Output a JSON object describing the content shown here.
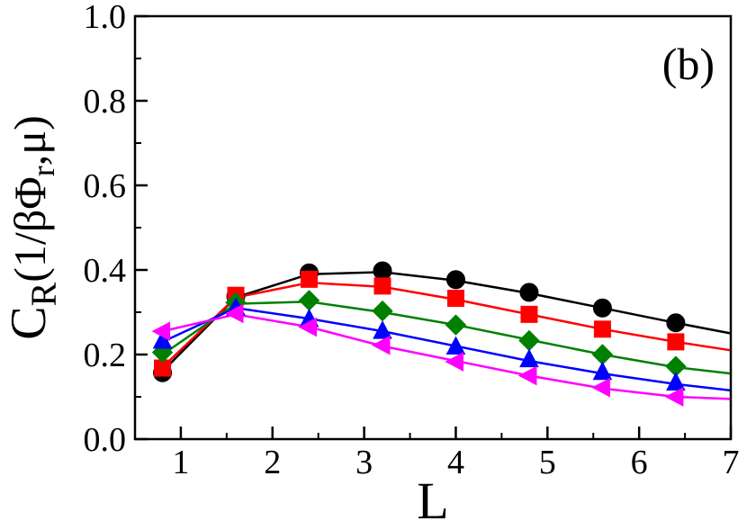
{
  "chart_data": {
    "type": "line",
    "panel_label": "(b)",
    "xlabel": "L",
    "ylabel": {
      "main": "C",
      "main_sub": "R",
      "arg_open": "(1/βΦ",
      "arg_sub": "r",
      "arg_close": ",μ)"
    },
    "xlim": [
      0.5,
      7
    ],
    "ylim": [
      0.0,
      1.0
    ],
    "xticks": [
      1,
      2,
      3,
      4,
      5,
      6,
      7
    ],
    "yticks": [
      0.0,
      0.2,
      0.4,
      0.6,
      0.8,
      1.0
    ],
    "xtick_labels": [
      "1",
      "2",
      "3",
      "4",
      "5",
      "6",
      "7"
    ],
    "ytick_labels": [
      "0.0",
      "0.2",
      "0.4",
      "0.6",
      "0.8",
      "1.0"
    ],
    "grid": false,
    "series": [
      {
        "color": "#000000",
        "marker": "circle",
        "line_x": [
          0.8,
          1.6,
          2.4,
          3.2,
          4.0,
          4.8,
          5.6,
          6.4,
          7.0
        ],
        "line_y": [
          0.16,
          0.335,
          0.39,
          0.395,
          0.375,
          0.345,
          0.31,
          0.275,
          0.25
        ],
        "marker_x": [
          0.8,
          1.6,
          2.4,
          3.2,
          4.0,
          4.8,
          5.6,
          6.4
        ],
        "marker_y": [
          0.157,
          0.337,
          0.393,
          0.398,
          0.377,
          0.347,
          0.31,
          0.275
        ]
      },
      {
        "color": "#ff0000",
        "marker": "square",
        "line_x": [
          0.8,
          1.6,
          2.4,
          3.2,
          4.0,
          4.8,
          5.6,
          6.4,
          7.0
        ],
        "line_y": [
          0.17,
          0.335,
          0.37,
          0.36,
          0.33,
          0.295,
          0.26,
          0.23,
          0.21
        ],
        "marker_x": [
          0.8,
          1.6,
          2.4,
          3.2,
          4.0,
          4.8,
          5.6,
          6.4
        ],
        "marker_y": [
          0.168,
          0.34,
          0.378,
          0.362,
          0.333,
          0.295,
          0.26,
          0.23
        ]
      },
      {
        "color": "#008000",
        "marker": "diamond",
        "line_x": [
          0.8,
          1.6,
          2.4,
          3.2,
          4.0,
          4.8,
          5.6,
          6.4,
          7.0
        ],
        "line_y": [
          0.2,
          0.32,
          0.325,
          0.3,
          0.27,
          0.235,
          0.2,
          0.17,
          0.155
        ],
        "marker_x": [
          0.8,
          1.6,
          2.4,
          3.2,
          4.0,
          4.8,
          5.6,
          6.4
        ],
        "marker_y": [
          0.205,
          0.323,
          0.328,
          0.303,
          0.27,
          0.233,
          0.2,
          0.172
        ]
      },
      {
        "color": "#0000ff",
        "marker": "triangle-up",
        "line_x": [
          0.8,
          1.6,
          2.4,
          3.2,
          4.0,
          4.8,
          5.6,
          6.4,
          7.0
        ],
        "line_y": [
          0.23,
          0.31,
          0.285,
          0.255,
          0.22,
          0.185,
          0.155,
          0.13,
          0.115
        ],
        "marker_x": [
          0.8,
          1.6,
          2.4,
          3.2,
          4.0,
          4.8,
          5.6,
          6.4
        ],
        "marker_y": [
          0.232,
          0.31,
          0.283,
          0.255,
          0.218,
          0.188,
          0.158,
          0.133
        ]
      },
      {
        "color": "#ff00ff",
        "marker": "triangle-left",
        "line_x": [
          0.8,
          1.6,
          2.4,
          3.2,
          4.0,
          4.8,
          5.6,
          6.4,
          7.0
        ],
        "line_y": [
          0.255,
          0.295,
          0.265,
          0.22,
          0.185,
          0.15,
          0.12,
          0.1,
          0.095
        ],
        "marker_x": [
          0.8,
          1.6,
          2.4,
          3.2,
          4.0,
          4.8,
          5.6,
          6.4
        ],
        "marker_y": [
          0.255,
          0.297,
          0.265,
          0.222,
          0.183,
          0.15,
          0.122,
          0.1
        ]
      }
    ]
  }
}
